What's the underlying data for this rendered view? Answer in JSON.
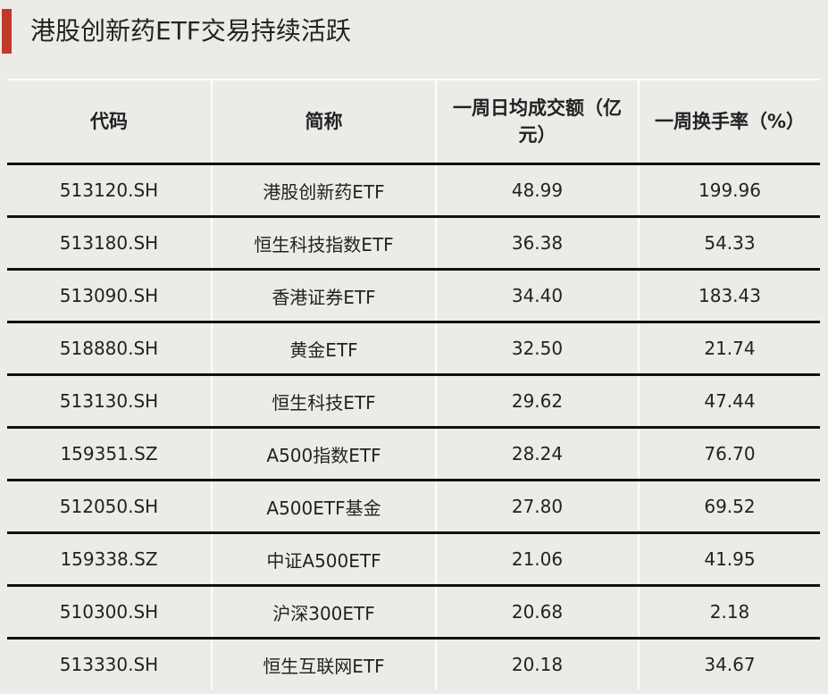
{
  "title": "港股创新药ETF交易持续活跃",
  "accent_color": "#c0392b",
  "table": {
    "headers": [
      "代码",
      "简称",
      "一周日均成交额（亿元）",
      "一周换手率（%）"
    ],
    "rows": [
      [
        "513120.SH",
        "港股创新药ETF",
        "48.99",
        "199.96"
      ],
      [
        "513180.SH",
        "恒生科技指数ETF",
        "36.38",
        "54.33"
      ],
      [
        "513090.SH",
        "香港证券ETF",
        "34.40",
        "183.43"
      ],
      [
        "518880.SH",
        "黄金ETF",
        "32.50",
        "21.74"
      ],
      [
        "513130.SH",
        "恒生科技ETF",
        "29.62",
        "47.44"
      ],
      [
        "159351.SZ",
        "A500指数ETF",
        "28.24",
        "76.70"
      ],
      [
        "512050.SH",
        "A500ETF基金",
        "27.80",
        "69.52"
      ],
      [
        "159338.SZ",
        "中证A500ETF",
        "21.06",
        "41.95"
      ],
      [
        "510300.SH",
        "沪深300ETF",
        "20.68",
        "2.18"
      ],
      [
        "513330.SH",
        "恒生互联网ETF",
        "20.18",
        "34.67"
      ]
    ]
  }
}
